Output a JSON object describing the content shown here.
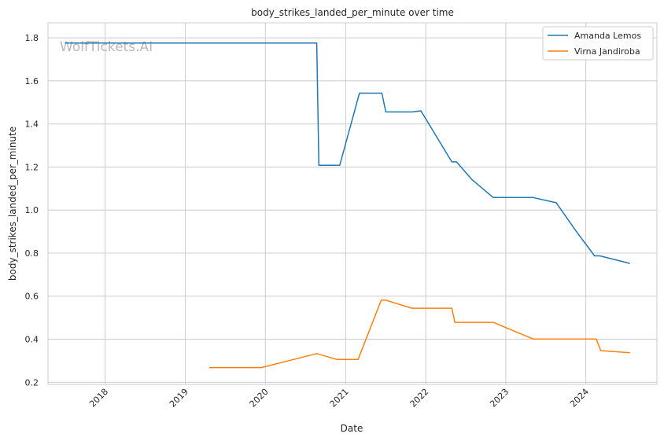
{
  "watermark": "WolfTickets.AI",
  "chart_data": {
    "type": "line",
    "title": "body_strikes_landed_per_minute over time",
    "xlabel": "Date",
    "ylabel": "body_strikes_landed_per_minute",
    "x_ticks": [
      "2018",
      "2019",
      "2020",
      "2021",
      "2022",
      "2023",
      "2024"
    ],
    "y_ticks": [
      "0.2",
      "0.4",
      "0.6",
      "0.8",
      "1.0",
      "1.2",
      "1.4",
      "1.6",
      "1.8"
    ],
    "xlim": [
      "2017-04-15",
      "2024-11-20"
    ],
    "ylim": [
      0.19,
      1.87
    ],
    "grid": true,
    "legend_position": "top-right",
    "series": [
      {
        "name": "Amanda Lemos",
        "color": "#1f77b4",
        "points": [
          [
            "2017-07-01",
            1.776
          ],
          [
            "2020-08-22",
            1.776
          ],
          [
            "2020-09-01",
            1.208
          ],
          [
            "2020-12-05",
            1.208
          ],
          [
            "2021-03-05",
            1.543
          ],
          [
            "2021-06-15",
            1.543
          ],
          [
            "2021-07-03",
            1.456
          ],
          [
            "2021-11-01",
            1.456
          ],
          [
            "2021-12-10",
            1.461
          ],
          [
            "2022-04-30",
            1.224
          ],
          [
            "2022-05-21",
            1.224
          ],
          [
            "2022-07-30",
            1.142
          ],
          [
            "2022-11-05",
            1.058
          ],
          [
            "2023-05-06",
            1.058
          ],
          [
            "2023-08-19",
            1.034
          ],
          [
            "2023-11-20",
            0.898
          ],
          [
            "2024-02-10",
            0.787
          ],
          [
            "2024-03-05",
            0.787
          ],
          [
            "2024-07-20",
            0.752
          ]
        ]
      },
      {
        "name": "Virna Jandiroba",
        "color": "#ff7f0e",
        "points": [
          [
            "2019-04-20",
            0.268
          ],
          [
            "2019-12-14",
            0.268
          ],
          [
            "2020-08-22",
            0.333
          ],
          [
            "2020-11-21",
            0.306
          ],
          [
            "2021-02-27",
            0.306
          ],
          [
            "2021-06-12",
            0.581
          ],
          [
            "2021-07-03",
            0.581
          ],
          [
            "2021-10-30",
            0.544
          ],
          [
            "2022-04-30",
            0.544
          ],
          [
            "2022-05-14",
            0.478
          ],
          [
            "2022-11-05",
            0.478
          ],
          [
            "2023-05-06",
            0.401
          ],
          [
            "2024-02-17",
            0.401
          ],
          [
            "2024-03-09",
            0.347
          ],
          [
            "2024-07-20",
            0.337
          ]
        ]
      }
    ]
  }
}
